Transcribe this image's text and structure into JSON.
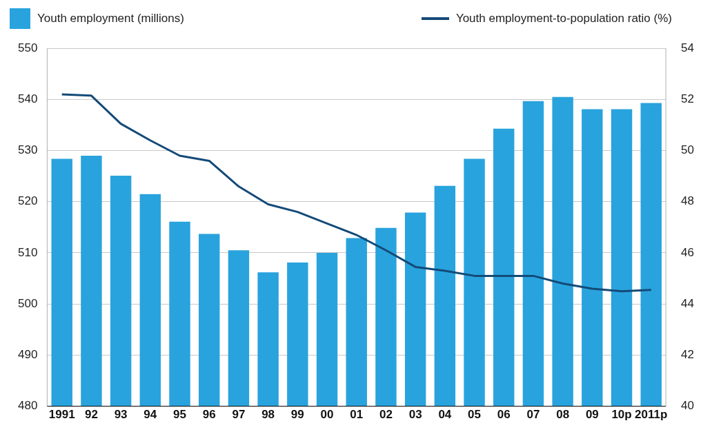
{
  "chart_data": {
    "type": "bar",
    "categories": [
      "1991",
      "92",
      "93",
      "94",
      "95",
      "96",
      "97",
      "98",
      "99",
      "00",
      "01",
      "02",
      "03",
      "04",
      "05",
      "06",
      "07",
      "08",
      "09",
      "10p",
      "2011p"
    ],
    "series": [
      {
        "name": "Youth employment (millions)",
        "color": "#29a3dd",
        "values": [
          528.4,
          529.0,
          525.1,
          521.5,
          516.1,
          513.7,
          510.5,
          506.2,
          508.1,
          510.0,
          512.9,
          514.9,
          517.9,
          523.1,
          528.4,
          534.3,
          539.7,
          540.5,
          538.1,
          538.1,
          539.3
        ]
      },
      {
        "name": "Youth employment-to-population ratio (%)",
        "type": "line",
        "axis": "y2",
        "color": "#134a78",
        "marker": "none",
        "values": [
          52.2,
          52.15,
          51.05,
          50.4,
          49.8,
          49.6,
          48.6,
          47.9,
          47.6,
          47.15,
          46.7,
          46.1,
          45.45,
          45.3,
          45.1,
          45.1,
          45.1,
          44.8,
          44.6,
          44.5,
          44.55
        ]
      }
    ],
    "ylim": [
      480,
      550
    ],
    "yticks": [
      480,
      490,
      500,
      510,
      520,
      530,
      540,
      550
    ],
    "y2lim": [
      40,
      54
    ],
    "y2ticks": [
      40,
      42,
      44,
      46,
      48,
      50,
      52,
      54
    ],
    "grid": "y",
    "legend": "top"
  }
}
